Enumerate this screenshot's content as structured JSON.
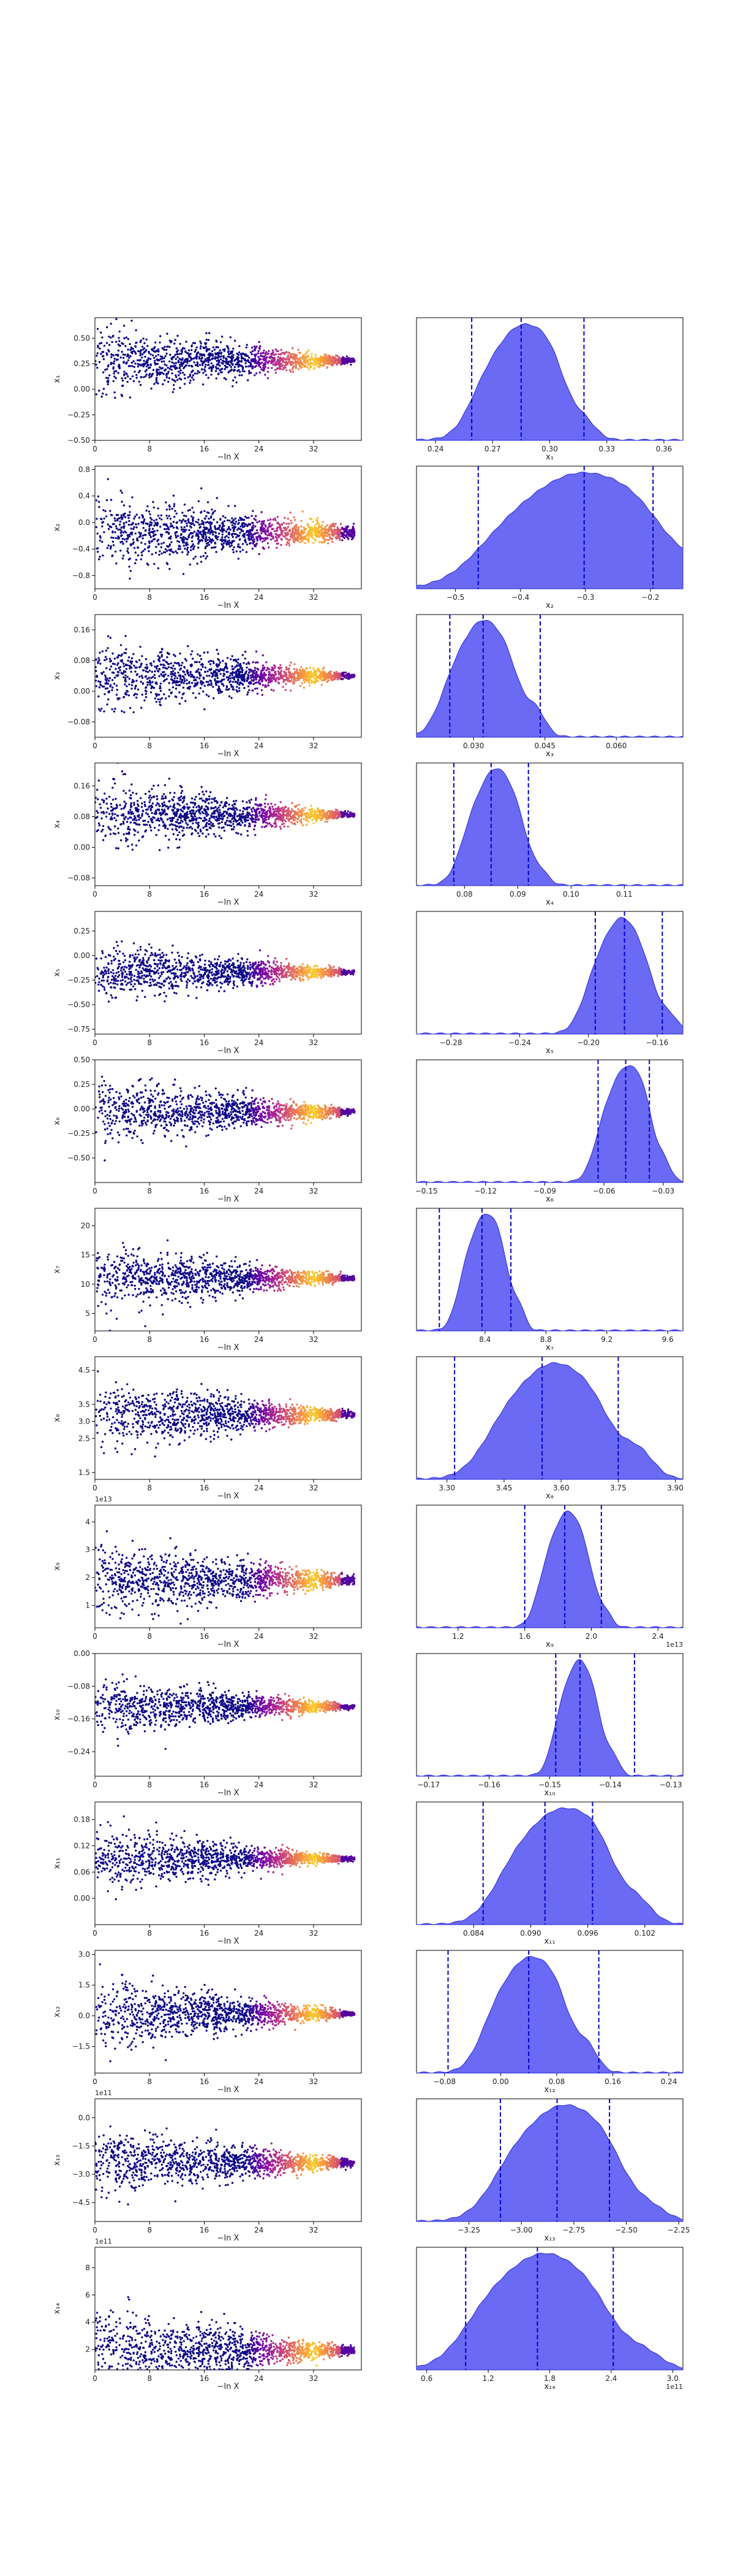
{
  "figure": {
    "x_common_label": "−ln X",
    "trace_xticks": [
      "0",
      "8",
      "16",
      "24",
      "32"
    ],
    "trace_xlim": [
      0,
      39
    ],
    "colors": {
      "trace_low": "#0d0887",
      "trace_high": "#f0f921",
      "hist_fill": "#5050f2",
      "hist_line": "#2a2ad8",
      "quantile_line": "#0000cc"
    }
  },
  "chart_data": [
    {
      "type": "scatter",
      "ylabel": "x₁",
      "yticks": [
        "0.50",
        "0.25",
        "0.00",
        "−0.25",
        "−0.50"
      ],
      "ylim": [
        -0.5,
        0.7
      ],
      "trace_center": 0.28,
      "trace_spread_start": 0.3,
      "trace_spread_end": 0.02,
      "hist": {
        "xlabel": "x₁",
        "xticks": [
          "0.24",
          "0.27",
          "0.30",
          "0.33",
          "0.36"
        ],
        "xlim": [
          0.23,
          0.37
        ],
        "peak": 0.285,
        "width": 0.012,
        "quantiles": [
          0.259,
          0.285,
          0.318
        ]
      }
    },
    {
      "type": "scatter",
      "ylabel": "x₂",
      "yticks": [
        "0.8",
        "0.4",
        "0.0",
        "−0.4",
        "−0.8"
      ],
      "ylim": [
        -1.0,
        0.85
      ],
      "trace_center": -0.15,
      "trace_spread_start": 0.5,
      "trace_spread_end": 0.08,
      "hist": {
        "xlabel": "x₂",
        "xticks": [
          "−0.5",
          "−0.4",
          "−0.3",
          "−0.2"
        ],
        "xlim": [
          -0.56,
          -0.15
        ],
        "peak": -0.31,
        "width": 0.07,
        "quantiles": [
          -0.465,
          -0.302,
          -0.196
        ]
      }
    },
    {
      "type": "scatter",
      "ylabel": "x₃",
      "yticks": [
        "0.16",
        "0.08",
        "0.00",
        "−0.08"
      ],
      "ylim": [
        -0.12,
        0.2
      ],
      "trace_center": 0.04,
      "trace_spread_start": 0.08,
      "trace_spread_end": 0.005,
      "hist": {
        "xlabel": "x₃",
        "xticks": [
          "0.030",
          "0.045",
          "0.060"
        ],
        "xlim": [
          0.018,
          0.074
        ],
        "peak": 0.032,
        "width": 0.004,
        "quantiles": [
          0.025,
          0.032,
          0.044
        ]
      }
    },
    {
      "type": "scatter",
      "ylabel": "x₄",
      "yticks": [
        "0.16",
        "0.08",
        "0.00",
        "−0.08"
      ],
      "ylim": [
        -0.1,
        0.22
      ],
      "trace_center": 0.085,
      "trace_spread_start": 0.08,
      "trace_spread_end": 0.005,
      "hist": {
        "xlabel": "x₄",
        "xticks": [
          "0.08",
          "0.09",
          "0.10",
          "0.11"
        ],
        "xlim": [
          0.071,
          0.121
        ],
        "peak": 0.086,
        "width": 0.003,
        "quantiles": [
          0.078,
          0.085,
          0.092
        ]
      }
    },
    {
      "type": "scatter",
      "ylabel": "x₅",
      "yticks": [
        "0.25",
        "0.00",
        "−0.25",
        "−0.50",
        "−0.75"
      ],
      "ylim": [
        -0.8,
        0.45
      ],
      "trace_center": -0.17,
      "trace_spread_start": 0.25,
      "trace_spread_end": 0.02,
      "hist": {
        "xlabel": "x₅",
        "xticks": [
          "−0.28",
          "−0.24",
          "−0.20",
          "−0.16"
        ],
        "xlim": [
          -0.3,
          -0.145
        ],
        "peak": -0.18,
        "width": 0.01,
        "quantiles": [
          -0.196,
          -0.179,
          -0.157
        ]
      }
    },
    {
      "type": "scatter",
      "ylabel": "x₆",
      "yticks": [
        "0.50",
        "0.25",
        "0.00",
        "−0.25",
        "−0.50"
      ],
      "ylim": [
        -0.75,
        0.5
      ],
      "trace_center": -0.03,
      "trace_spread_start": 0.3,
      "trace_spread_end": 0.02,
      "hist": {
        "xlabel": "x₆",
        "xticks": [
          "−0.15",
          "−0.12",
          "−0.09",
          "−0.06",
          "−0.03"
        ],
        "xlim": [
          -0.155,
          -0.02
        ],
        "peak": -0.049,
        "width": 0.007,
        "quantiles": [
          -0.063,
          -0.049,
          -0.037
        ]
      }
    },
    {
      "type": "scatter",
      "ylabel": "x₇",
      "yticks": [
        "20",
        "15",
        "10",
        "5"
      ],
      "ylim": [
        2,
        23
      ],
      "trace_center": 11,
      "trace_spread_start": 5,
      "trace_spread_end": 0.3,
      "hist": {
        "xlabel": "x₇",
        "xticks": [
          "8.4",
          "8.8",
          "9.2",
          "9.6"
        ],
        "xlim": [
          7.95,
          9.7
        ],
        "peak": 8.4,
        "width": 0.08,
        "quantiles": [
          8.1,
          8.38,
          8.57
        ]
      }
    },
    {
      "type": "scatter",
      "ylabel": "x₈",
      "yticks": [
        "4.5",
        "3.5",
        "3.0",
        "2.5",
        "1.5"
      ],
      "ylim": [
        1.3,
        4.9
      ],
      "trace_center": 3.2,
      "trace_spread_start": 0.9,
      "trace_spread_end": 0.08,
      "hist": {
        "xlabel": "x₈",
        "xticks": [
          "3.30",
          "3.45",
          "3.60",
          "3.75",
          "3.90"
        ],
        "xlim": [
          3.22,
          3.92
        ],
        "peak": 3.58,
        "width": 0.08,
        "quantiles": [
          3.32,
          3.55,
          3.75
        ]
      }
    },
    {
      "type": "scatter",
      "ylabel": "x₉",
      "offset": "1e13",
      "yticks": [
        "4",
        "3",
        "2",
        "1"
      ],
      "ylim": [
        0.2,
        4.6
      ],
      "trace_center": 1.9,
      "trace_spread_start": 1.2,
      "trace_spread_end": 0.15,
      "hist": {
        "xlabel": "x₉",
        "offset": "1e13",
        "xticks": [
          "1.2",
          "1.6",
          "2.0",
          "2.4"
        ],
        "xlim": [
          0.95,
          2.55
        ],
        "peak": 1.86,
        "width": 0.08,
        "quantiles": [
          1.6,
          1.84,
          2.06
        ]
      }
    },
    {
      "type": "scatter",
      "ylabel": "x₁₀",
      "yticks": [
        "0.00",
        "−0.08",
        "−0.16",
        "−0.24"
      ],
      "ylim": [
        -0.3,
        0.0
      ],
      "trace_center": -0.13,
      "trace_spread_start": 0.06,
      "trace_spread_end": 0.004,
      "hist": {
        "xlabel": "x₁₀",
        "xticks": [
          "−0.17",
          "−0.16",
          "−0.15",
          "−0.14",
          "−0.13"
        ],
        "xlim": [
          -0.172,
          -0.128
        ],
        "peak": -0.145,
        "width": 0.002,
        "quantiles": [
          -0.149,
          -0.145,
          -0.136
        ]
      }
    },
    {
      "type": "scatter",
      "ylabel": "x₁₁",
      "yticks": [
        "0.18",
        "0.12",
        "0.06",
        "0.00"
      ],
      "ylim": [
        -0.06,
        0.22
      ],
      "trace_center": 0.09,
      "trace_spread_start": 0.06,
      "trace_spread_end": 0.004,
      "hist": {
        "xlabel": "x₁₁",
        "xticks": [
          "0.084",
          "0.090",
          "0.096",
          "0.102"
        ],
        "xlim": [
          0.078,
          0.106
        ],
        "peak": 0.093,
        "width": 0.003,
        "quantiles": [
          0.085,
          0.0915,
          0.0965
        ]
      }
    },
    {
      "type": "scatter",
      "ylabel": "x₁₂",
      "yticks": [
        "3.0",
        "1.5",
        "0.0",
        "−1.5"
      ],
      "ylim": [
        -2.8,
        3.2
      ],
      "trace_center": 0.1,
      "trace_spread_start": 1.6,
      "trace_spread_end": 0.08,
      "hist": {
        "xlabel": "x₁₂",
        "xticks": [
          "−0.08",
          "0.00",
          "0.08",
          "0.16",
          "0.24"
        ],
        "xlim": [
          -0.12,
          0.26
        ],
        "peak": 0.04,
        "width": 0.03,
        "quantiles": [
          -0.075,
          0.04,
          0.14
        ]
      }
    },
    {
      "type": "scatter",
      "ylabel": "x₁₃",
      "offset": "1e11",
      "yticks": [
        "0.0",
        "−1.5",
        "−3.0",
        "−4.5"
      ],
      "ylim": [
        -5.5,
        1.0
      ],
      "trace_center": -2.4,
      "trace_spread_start": 1.6,
      "trace_spread_end": 0.15,
      "hist": {
        "xlabel": "x₁₃",
        "xticks": [
          "−3.25",
          "−3.00",
          "−2.75",
          "−2.50",
          "−2.25"
        ],
        "xlim": [
          -3.5,
          -2.23
        ],
        "peak": -2.8,
        "width": 0.15,
        "quantiles": [
          -3.1,
          -2.83,
          -2.58
        ]
      }
    },
    {
      "type": "scatter",
      "ylabel": "x₁₄",
      "offset": "1e11",
      "yticks": [
        "8",
        "6",
        "4",
        "2"
      ],
      "ylim": [
        0.5,
        9.5
      ],
      "trace_center": 1.9,
      "trace_spread_start": 2.8,
      "trace_spread_end": 0.2,
      "hist": {
        "xlabel": "x₁₄",
        "offset": "1e11",
        "xticks": [
          "0.6",
          "1.2",
          "1.8",
          "2.4",
          "3.0"
        ],
        "xlim": [
          0.5,
          3.1
        ],
        "peak": 1.75,
        "width": 0.35,
        "quantiles": [
          0.98,
          1.68,
          2.42
        ]
      }
    }
  ]
}
